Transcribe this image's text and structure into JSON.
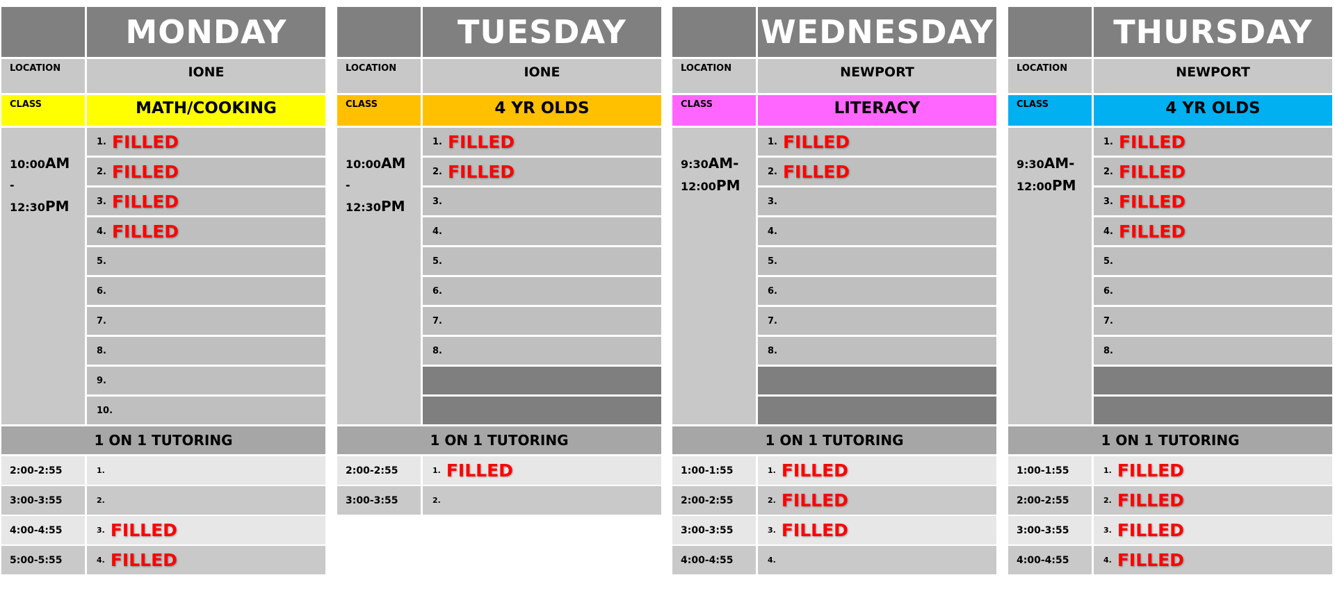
{
  "labels": {
    "location": "LOCATION",
    "class": "CLASS",
    "tutoring": "1 ON 1 TUTORING"
  },
  "days": [
    {
      "name": "MONDAY",
      "location": "IONE",
      "class": "MATH/COOKING",
      "class_color": "#ffff00",
      "time_start": "10:00",
      "time_start_suffix": "AM",
      "time_sep": "-",
      "time_end": "12:30",
      "time_end_suffix": "PM",
      "slots": [
        {
          "n": "1.",
          "s": "FILLED"
        },
        {
          "n": "2.",
          "s": "FILLED"
        },
        {
          "n": "3.",
          "s": "FILLED"
        },
        {
          "n": "4.",
          "s": "FILLED"
        },
        {
          "n": "5.",
          "s": ""
        },
        {
          "n": "6.",
          "s": ""
        },
        {
          "n": "7.",
          "s": ""
        },
        {
          "n": "8.",
          "s": ""
        },
        {
          "n": "9.",
          "s": ""
        },
        {
          "n": "10.",
          "s": ""
        }
      ],
      "tutoring": [
        {
          "t": "2:00-2:55",
          "n": "1.",
          "s": ""
        },
        {
          "t": "3:00-3:55",
          "n": "2.",
          "s": ""
        },
        {
          "t": "4:00-4:55",
          "n": "3.",
          "s": "FILLED"
        },
        {
          "t": "5:00-5:55",
          "n": "4.",
          "s": "FILLED"
        }
      ]
    },
    {
      "name": "TUESDAY",
      "location": "IONE",
      "class": "4 YR OLDS",
      "class_color": "#ffc000",
      "time_start": "10:00",
      "time_start_suffix": "AM",
      "time_sep": "-",
      "time_end": "12:30",
      "time_end_suffix": "PM",
      "slots": [
        {
          "n": "1.",
          "s": "FILLED"
        },
        {
          "n": "2.",
          "s": "FILLED"
        },
        {
          "n": "3.",
          "s": ""
        },
        {
          "n": "4.",
          "s": ""
        },
        {
          "n": "5.",
          "s": ""
        },
        {
          "n": "6.",
          "s": ""
        },
        {
          "n": "7.",
          "s": ""
        },
        {
          "n": "8.",
          "s": ""
        },
        {
          "n": "",
          "s": "",
          "dark": true
        },
        {
          "n": "",
          "s": "",
          "dark": true
        }
      ],
      "tutoring": [
        {
          "t": "2:00-2:55",
          "n": "1.",
          "s": "FILLED"
        },
        {
          "t": "3:00-3:55",
          "n": "2.",
          "s": ""
        }
      ]
    },
    {
      "name": "WEDNESDAY",
      "location": "NEWPORT",
      "class": "LITERACY",
      "class_color": "#ff66ff",
      "time_start": "9:30",
      "time_start_suffix": "AM-",
      "time_sep": "",
      "time_end": "12:00",
      "time_end_suffix": "PM",
      "slots": [
        {
          "n": "1.",
          "s": "FILLED"
        },
        {
          "n": "2.",
          "s": "FILLED"
        },
        {
          "n": "3.",
          "s": ""
        },
        {
          "n": "4.",
          "s": ""
        },
        {
          "n": "5.",
          "s": ""
        },
        {
          "n": "6.",
          "s": ""
        },
        {
          "n": "7.",
          "s": ""
        },
        {
          "n": "8.",
          "s": ""
        },
        {
          "n": "",
          "s": "",
          "dark": true
        },
        {
          "n": "",
          "s": "",
          "dark": true
        }
      ],
      "tutoring": [
        {
          "t": "1:00-1:55",
          "n": "1.",
          "s": "FILLED"
        },
        {
          "t": "2:00-2:55",
          "n": "2.",
          "s": "FILLED"
        },
        {
          "t": "3:00-3:55",
          "n": "3.",
          "s": "FILLED"
        },
        {
          "t": "4:00-4:55",
          "n": "4.",
          "s": ""
        }
      ]
    },
    {
      "name": "THURSDAY",
      "location": "NEWPORT",
      "class": "4 YR OLDS",
      "class_color": "#00b0f0",
      "time_start": "9:30",
      "time_start_suffix": "AM-",
      "time_sep": "",
      "time_end": "12:00",
      "time_end_suffix": "PM",
      "slots": [
        {
          "n": "1.",
          "s": "FILLED"
        },
        {
          "n": "2.",
          "s": "FILLED"
        },
        {
          "n": "3.",
          "s": "FILLED"
        },
        {
          "n": "4.",
          "s": "FILLED"
        },
        {
          "n": "5.",
          "s": ""
        },
        {
          "n": "6.",
          "s": ""
        },
        {
          "n": "7.",
          "s": ""
        },
        {
          "n": "8.",
          "s": ""
        },
        {
          "n": "",
          "s": "",
          "dark": true
        },
        {
          "n": "",
          "s": "",
          "dark": true
        }
      ],
      "tutoring": [
        {
          "t": "1:00-1:55",
          "n": "1.",
          "s": "FILLED"
        },
        {
          "t": "2:00-2:55",
          "n": "2.",
          "s": "FILLED"
        },
        {
          "t": "3:00-3:55",
          "n": "3.",
          "s": "FILLED"
        },
        {
          "t": "4:00-4:55",
          "n": "4.",
          "s": "FILLED"
        }
      ]
    }
  ]
}
